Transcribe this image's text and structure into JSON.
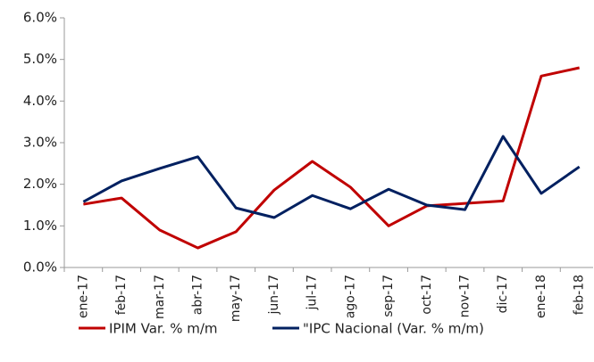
{
  "chart_data": {
    "type": "line",
    "categories": [
      "ene-17",
      "feb-17",
      "mar-17",
      "abr-17",
      "may-17",
      "jun-17",
      "jul-17",
      "ago-17",
      "sep-17",
      "oct-17",
      "nov-17",
      "dic-17",
      "ene-18",
      "feb-18"
    ],
    "series": [
      {
        "name": "IPIM Var. % m/m",
        "color": "#c00000",
        "values": [
          1.52,
          1.67,
          0.9,
          0.47,
          0.86,
          1.86,
          2.55,
          1.93,
          1.0,
          1.48,
          1.54,
          1.6,
          4.6,
          4.8
        ]
      },
      {
        "name": "\"IPC Nacional (Var. % m/m)",
        "color": "#002060",
        "values": [
          1.58,
          2.08,
          2.38,
          2.66,
          1.43,
          1.2,
          1.73,
          1.41,
          1.88,
          1.5,
          1.39,
          3.15,
          1.78,
          2.42
        ]
      }
    ],
    "ylim": [
      0,
      6
    ],
    "yticks": [
      {
        "value": 0,
        "label": "0.0%"
      },
      {
        "value": 1,
        "label": "1.0%"
      },
      {
        "value": 2,
        "label": "2.0%"
      },
      {
        "value": 3,
        "label": "3.0%"
      },
      {
        "value": 4,
        "label": "4.0%"
      },
      {
        "value": 5,
        "label": "5.0%"
      },
      {
        "value": 6,
        "label": "6.0%"
      }
    ],
    "legend": "bottom",
    "grid": false
  }
}
